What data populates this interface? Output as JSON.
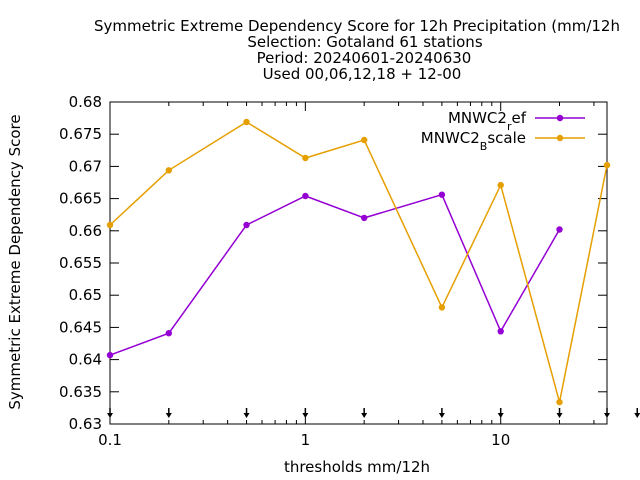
{
  "chart_data": {
    "type": "line",
    "title_lines": [
      "Symmetric Extreme Dependency Score  for 12h Precipitation (mm/12h",
      "Selection: Gotaland     61 stations",
      "Period: 20240601-20240630",
      "Used 00,06,12,18 + 12-00"
    ],
    "xlabel": "thresholds mm/12h",
    "ylabel": "Symmetric Extreme Dependency Score",
    "xscale": "log",
    "xlim": [
      0.1,
      35
    ],
    "ylim": [
      0.63,
      0.68
    ],
    "x_ticks": [
      {
        "value": 0.1,
        "label": "0.1"
      },
      {
        "value": 1,
        "label": "1"
      },
      {
        "value": 10,
        "label": "10"
      }
    ],
    "y_ticks": [
      {
        "value": 0.63,
        "label": "0.63"
      },
      {
        "value": 0.635,
        "label": "0.635"
      },
      {
        "value": 0.64,
        "label": "0.64"
      },
      {
        "value": 0.645,
        "label": "0.645"
      },
      {
        "value": 0.65,
        "label": "0.65"
      },
      {
        "value": 0.655,
        "label": "0.655"
      },
      {
        "value": 0.66,
        "label": "0.66"
      },
      {
        "value": 0.665,
        "label": "0.665"
      },
      {
        "value": 0.67,
        "label": "0.67"
      },
      {
        "value": 0.675,
        "label": "0.675"
      },
      {
        "value": 0.68,
        "label": "0.68"
      }
    ],
    "bottom_arrow_markers_x": [
      0.1,
      0.2,
      0.5,
      1,
      2,
      5,
      10,
      20,
      35,
      50
    ],
    "legend_position": "top-right",
    "grid": false,
    "series": [
      {
        "legend_main": "MNWC2",
        "legend_sub": "r",
        "legend_tail": "ef",
        "color": "#9400d3",
        "x": [
          0.1,
          0.2,
          0.5,
          1,
          2,
          5,
          10,
          20
        ],
        "y": [
          0.6407,
          0.6441,
          0.6609,
          0.6654,
          0.662,
          0.6656,
          0.6444,
          0.6602
        ]
      },
      {
        "legend_main": "MNWC2",
        "legend_sub": "B",
        "legend_tail": "scale",
        "color": "#e69f00",
        "x": [
          0.1,
          0.2,
          0.5,
          1,
          2,
          5,
          10,
          20,
          35
        ],
        "y": [
          0.6609,
          0.6694,
          0.6769,
          0.6713,
          0.6741,
          0.6481,
          0.6671,
          0.6334,
          0.6702
        ]
      }
    ]
  }
}
